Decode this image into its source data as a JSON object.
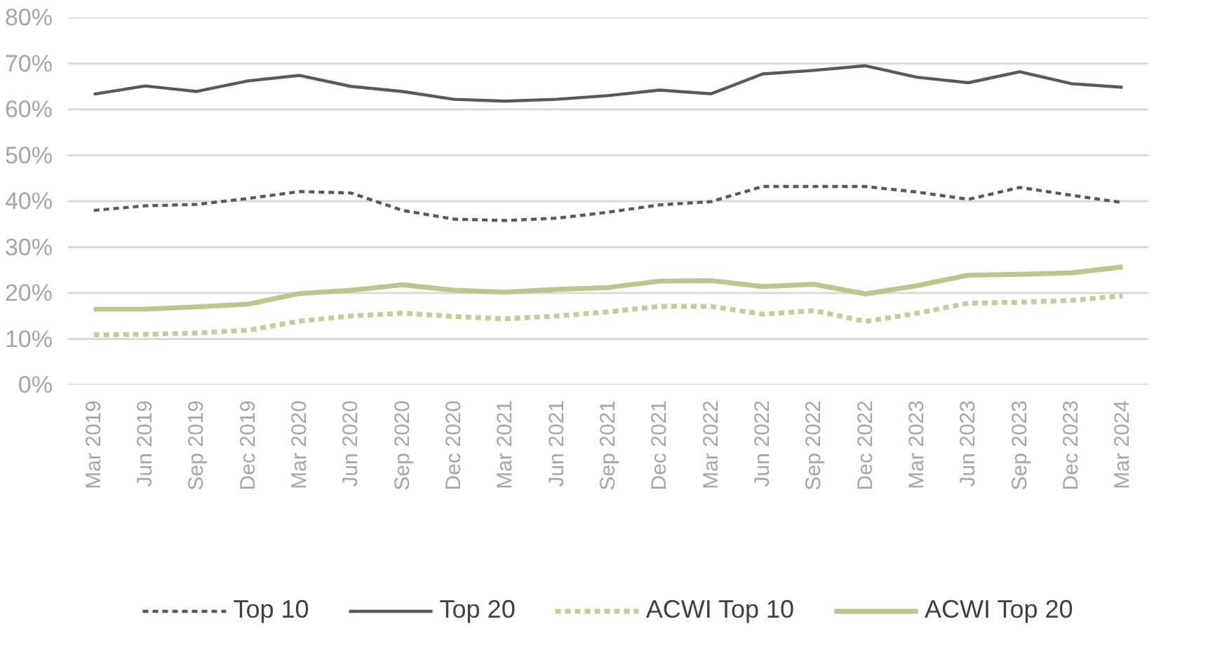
{
  "chart_data": {
    "type": "line",
    "categories": [
      "Mar 2019",
      "Jun 2019",
      "Sep 2019",
      "Dec 2019",
      "Mar 2020",
      "Jun 2020",
      "Sep 2020",
      "Dec 2020",
      "Mar 2021",
      "Jun 2021",
      "Sep 2021",
      "Dec 2021",
      "Mar 2022",
      "Jun 2022",
      "Sep 2022",
      "Dec 2022",
      "Mar 2023",
      "Jun 2023",
      "Sep 2023",
      "Dec 2023",
      "Mar 2024"
    ],
    "series": [
      {
        "name": "Top 10",
        "color": "#595959",
        "line_style": "dashed",
        "values": [
          38,
          39,
          39.3,
          40.6,
          42.1,
          41.8,
          38,
          36.1,
          35.8,
          36.3,
          37.6,
          39.2,
          39.9,
          43.2,
          43.2,
          43.2,
          42,
          40.4,
          43,
          41.3,
          39.7
        ]
      },
      {
        "name": "Top 20",
        "color": "#595959",
        "line_style": "solid",
        "values": [
          63.3,
          65.1,
          63.9,
          66.2,
          67.4,
          65,
          63.9,
          62.2,
          61.8,
          62.2,
          63,
          64.2,
          63.4,
          67.7,
          68.5,
          69.5,
          67,
          65.8,
          68.2,
          65.6,
          64.8
        ]
      },
      {
        "name": "ACWI Top 10",
        "color": "#c4cc9a",
        "line_style": "dashed",
        "values": [
          10.9,
          11,
          11.3,
          11.9,
          13.9,
          15,
          15.6,
          14.9,
          14.4,
          15,
          15.9,
          17.1,
          17.1,
          15.4,
          16.2,
          13.8,
          15.6,
          17.8,
          18,
          18.4,
          19.4
        ]
      },
      {
        "name": "ACWI Top 20",
        "color": "#bcc68f",
        "line_style": "solid",
        "values": [
          16.5,
          16.5,
          17,
          17.6,
          19.9,
          20.6,
          21.8,
          20.6,
          20.2,
          20.8,
          21.2,
          22.6,
          22.7,
          21.4,
          21.9,
          19.8,
          21.6,
          23.9,
          24.1,
          24.4,
          25.7
        ]
      }
    ],
    "ylim": [
      0,
      80
    ],
    "yticks": [
      {
        "value": 0,
        "label": "0%"
      },
      {
        "value": 10,
        "label": "10%"
      },
      {
        "value": 20,
        "label": "20%"
      },
      {
        "value": 30,
        "label": "30%"
      },
      {
        "value": 40,
        "label": "40%"
      },
      {
        "value": 50,
        "label": "50%"
      },
      {
        "value": 60,
        "label": "60%"
      },
      {
        "value": 70,
        "label": "70%"
      },
      {
        "value": 80,
        "label": "80%"
      }
    ],
    "grid": "y",
    "legend": "bottom"
  }
}
